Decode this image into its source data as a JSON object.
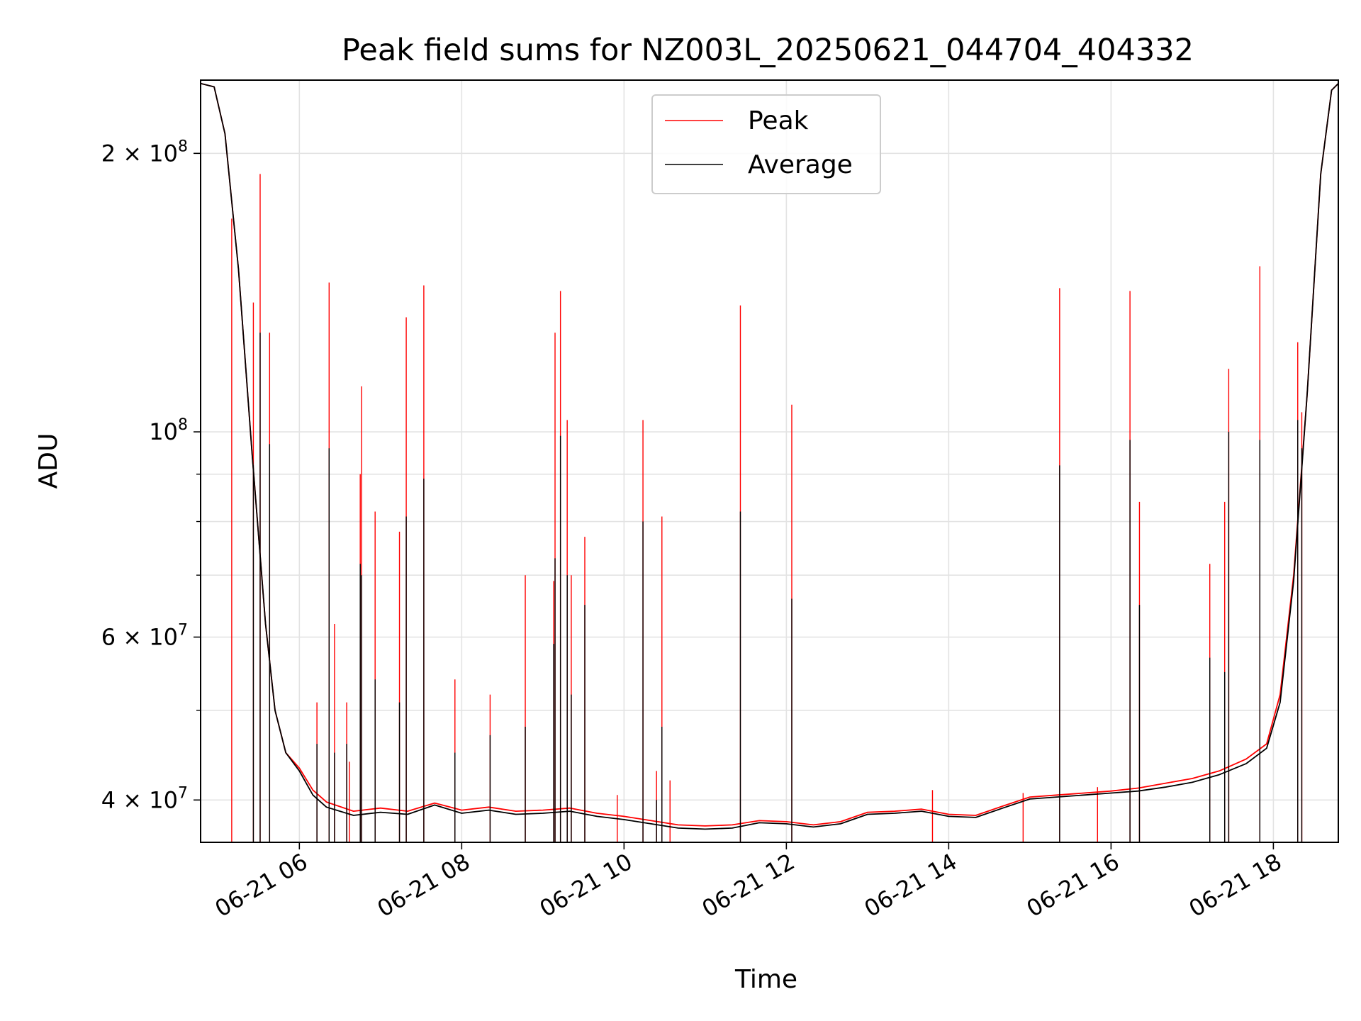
{
  "chart_data": {
    "type": "line",
    "title": "Peak field sums for NZ003L_20250621_044704_404332",
    "xlabel": "Time",
    "ylabel": "ADU",
    "yscale": "log",
    "ylim": [
      36000000,
      240000000
    ],
    "xlim": [
      "2025-06-21 04:47",
      "2025-06-21 18:48"
    ],
    "grid": true,
    "legend_position": "top-center",
    "x_ticks": [
      {
        "time": "2025-06-21 06:00",
        "label": "06-21 06"
      },
      {
        "time": "2025-06-21 08:00",
        "label": "06-21 08"
      },
      {
        "time": "2025-06-21 10:00",
        "label": "06-21 10"
      },
      {
        "time": "2025-06-21 12:00",
        "label": "06-21 12"
      },
      {
        "time": "2025-06-21 14:00",
        "label": "06-21 14"
      },
      {
        "time": "2025-06-21 16:00",
        "label": "06-21 16"
      },
      {
        "time": "2025-06-21 18:00",
        "label": "06-21 18"
      }
    ],
    "y_ticks_major": [
      {
        "value": 40000000,
        "mantissa": "4",
        "base": "10",
        "exp": "7"
      },
      {
        "value": 60000000,
        "mantissa": "6",
        "base": "10",
        "exp": "7"
      },
      {
        "value": 100000000,
        "mantissa": "",
        "base": "10",
        "exp": "8"
      },
      {
        "value": 200000000,
        "mantissa": "2",
        "base": "10",
        "exp": "8"
      }
    ],
    "y_ticks_minor": [
      50000000,
      70000000,
      80000000,
      90000000
    ],
    "series": [
      {
        "name": "Peak",
        "color": "#ff0000",
        "baseline": [
          [
            "2025-06-21 04:47",
            238000000
          ],
          [
            "2025-06-21 04:57",
            236000000
          ],
          [
            "2025-06-21 05:05",
            210000000
          ],
          [
            "2025-06-21 05:15",
            150000000
          ],
          [
            "2025-06-21 05:25",
            95000000
          ],
          [
            "2025-06-21 05:35",
            62000000
          ],
          [
            "2025-06-21 05:42",
            50000000
          ],
          [
            "2025-06-21 05:50",
            45000000
          ],
          [
            "2025-06-21 06:00",
            43300000
          ],
          [
            "2025-06-21 06:10",
            41000000
          ],
          [
            "2025-06-21 06:20",
            39800000
          ],
          [
            "2025-06-21 06:40",
            38900000
          ],
          [
            "2025-06-21 07:00",
            39200000
          ],
          [
            "2025-06-21 07:20",
            38900000
          ],
          [
            "2025-06-21 07:40",
            39700000
          ],
          [
            "2025-06-21 08:00",
            39000000
          ],
          [
            "2025-06-21 08:20",
            39300000
          ],
          [
            "2025-06-21 08:40",
            38900000
          ],
          [
            "2025-06-21 09:00",
            39000000
          ],
          [
            "2025-06-21 09:20",
            39200000
          ],
          [
            "2025-06-21 09:40",
            38700000
          ],
          [
            "2025-06-21 10:00",
            38400000
          ],
          [
            "2025-06-21 10:20",
            38000000
          ],
          [
            "2025-06-21 10:40",
            37600000
          ],
          [
            "2025-06-21 11:00",
            37500000
          ],
          [
            "2025-06-21 11:20",
            37600000
          ],
          [
            "2025-06-21 11:40",
            38000000
          ],
          [
            "2025-06-21 12:00",
            37900000
          ],
          [
            "2025-06-21 12:20",
            37600000
          ],
          [
            "2025-06-21 12:40",
            37900000
          ],
          [
            "2025-06-21 13:00",
            38800000
          ],
          [
            "2025-06-21 13:20",
            38900000
          ],
          [
            "2025-06-21 13:40",
            39100000
          ],
          [
            "2025-06-21 14:00",
            38600000
          ],
          [
            "2025-06-21 14:20",
            38500000
          ],
          [
            "2025-06-21 14:40",
            39400000
          ],
          [
            "2025-06-21 15:00",
            40300000
          ],
          [
            "2025-06-21 15:20",
            40500000
          ],
          [
            "2025-06-21 15:40",
            40700000
          ],
          [
            "2025-06-21 16:00",
            40900000
          ],
          [
            "2025-06-21 16:20",
            41200000
          ],
          [
            "2025-06-21 16:40",
            41700000
          ],
          [
            "2025-06-21 17:00",
            42200000
          ],
          [
            "2025-06-21 17:20",
            43000000
          ],
          [
            "2025-06-21 17:40",
            44300000
          ],
          [
            "2025-06-21 17:55",
            46000000
          ],
          [
            "2025-06-21 18:05",
            52000000
          ],
          [
            "2025-06-21 18:15",
            70000000
          ],
          [
            "2025-06-21 18:25",
            110000000
          ],
          [
            "2025-06-21 18:35",
            190000000
          ],
          [
            "2025-06-21 18:43",
            234000000
          ],
          [
            "2025-06-21 18:48",
            238000000
          ]
        ],
        "spikes": [
          [
            "2025-06-21 05:10",
            170000000
          ],
          [
            "2025-06-21 05:26",
            138000000
          ],
          [
            "2025-06-21 05:31",
            190000000
          ],
          [
            "2025-06-21 05:38",
            128000000
          ],
          [
            "2025-06-21 06:13",
            51000000
          ],
          [
            "2025-06-21 06:22",
            145000000
          ],
          [
            "2025-06-21 06:26",
            62000000
          ],
          [
            "2025-06-21 06:35",
            51000000
          ],
          [
            "2025-06-21 06:37",
            44000000
          ],
          [
            "2025-06-21 06:45",
            90000000
          ],
          [
            "2025-06-21 06:46",
            112000000
          ],
          [
            "2025-06-21 06:56",
            82000000
          ],
          [
            "2025-06-21 07:14",
            78000000
          ],
          [
            "2025-06-21 07:19",
            133000000
          ],
          [
            "2025-06-21 07:32",
            144000000
          ],
          [
            "2025-06-21 07:55",
            54000000
          ],
          [
            "2025-06-21 08:21",
            52000000
          ],
          [
            "2025-06-21 08:47",
            70000000
          ],
          [
            "2025-06-21 09:08",
            69000000
          ],
          [
            "2025-06-21 09:09",
            128000000
          ],
          [
            "2025-06-21 09:13",
            142000000
          ],
          [
            "2025-06-21 09:18",
            103000000
          ],
          [
            "2025-06-21 09:21",
            70000000
          ],
          [
            "2025-06-21 09:31",
            77000000
          ],
          [
            "2025-06-21 09:55",
            40500000
          ],
          [
            "2025-06-21 10:14",
            103000000
          ],
          [
            "2025-06-21 10:24",
            43000000
          ],
          [
            "2025-06-21 10:28",
            81000000
          ],
          [
            "2025-06-21 10:34",
            42000000
          ],
          [
            "2025-06-21 11:26",
            137000000
          ],
          [
            "2025-06-21 12:04",
            107000000
          ],
          [
            "2025-06-21 13:48",
            41000000
          ],
          [
            "2025-06-21 14:55",
            40700000
          ],
          [
            "2025-06-21 15:22",
            143000000
          ],
          [
            "2025-06-21 15:50",
            41300000
          ],
          [
            "2025-06-21 16:14",
            142000000
          ],
          [
            "2025-06-21 16:21",
            84000000
          ],
          [
            "2025-06-21 17:13",
            72000000
          ],
          [
            "2025-06-21 17:24",
            84000000
          ],
          [
            "2025-06-21 17:27",
            117000000
          ],
          [
            "2025-06-21 17:50",
            151000000
          ],
          [
            "2025-06-21 18:18",
            125000000
          ],
          [
            "2025-06-21 18:21",
            105000000
          ]
        ]
      },
      {
        "name": "Average",
        "color": "#000000",
        "baseline": [
          [
            "2025-06-21 04:47",
            238000000
          ],
          [
            "2025-06-21 04:57",
            236000000
          ],
          [
            "2025-06-21 05:05",
            210000000
          ],
          [
            "2025-06-21 05:15",
            150000000
          ],
          [
            "2025-06-21 05:25",
            95000000
          ],
          [
            "2025-06-21 05:35",
            62000000
          ],
          [
            "2025-06-21 05:42",
            50000000
          ],
          [
            "2025-06-21 05:50",
            45000000
          ],
          [
            "2025-06-21 06:00",
            43000000
          ],
          [
            "2025-06-21 06:10",
            40500000
          ],
          [
            "2025-06-21 06:20",
            39300000
          ],
          [
            "2025-06-21 06:40",
            38500000
          ],
          [
            "2025-06-21 07:00",
            38800000
          ],
          [
            "2025-06-21 07:20",
            38600000
          ],
          [
            "2025-06-21 07:40",
            39500000
          ],
          [
            "2025-06-21 08:00",
            38700000
          ],
          [
            "2025-06-21 08:20",
            39000000
          ],
          [
            "2025-06-21 08:40",
            38600000
          ],
          [
            "2025-06-21 09:00",
            38700000
          ],
          [
            "2025-06-21 09:20",
            38900000
          ],
          [
            "2025-06-21 09:40",
            38400000
          ],
          [
            "2025-06-21 10:00",
            38100000
          ],
          [
            "2025-06-21 10:20",
            37700000
          ],
          [
            "2025-06-21 10:40",
            37300000
          ],
          [
            "2025-06-21 11:00",
            37200000
          ],
          [
            "2025-06-21 11:20",
            37300000
          ],
          [
            "2025-06-21 11:40",
            37800000
          ],
          [
            "2025-06-21 12:00",
            37700000
          ],
          [
            "2025-06-21 12:20",
            37400000
          ],
          [
            "2025-06-21 12:40",
            37700000
          ],
          [
            "2025-06-21 13:00",
            38600000
          ],
          [
            "2025-06-21 13:20",
            38700000
          ],
          [
            "2025-06-21 13:40",
            38900000
          ],
          [
            "2025-06-21 14:00",
            38400000
          ],
          [
            "2025-06-21 14:20",
            38300000
          ],
          [
            "2025-06-21 14:40",
            39200000
          ],
          [
            "2025-06-21 15:00",
            40100000
          ],
          [
            "2025-06-21 15:20",
            40300000
          ],
          [
            "2025-06-21 15:40",
            40500000
          ],
          [
            "2025-06-21 16:00",
            40700000
          ],
          [
            "2025-06-21 16:20",
            40900000
          ],
          [
            "2025-06-21 16:40",
            41300000
          ],
          [
            "2025-06-21 17:00",
            41800000
          ],
          [
            "2025-06-21 17:20",
            42600000
          ],
          [
            "2025-06-21 17:40",
            43800000
          ],
          [
            "2025-06-21 17:55",
            45500000
          ],
          [
            "2025-06-21 18:05",
            51000000
          ],
          [
            "2025-06-21 18:15",
            69000000
          ],
          [
            "2025-06-21 18:25",
            110000000
          ],
          [
            "2025-06-21 18:35",
            190000000
          ],
          [
            "2025-06-21 18:43",
            234000000
          ],
          [
            "2025-06-21 18:48",
            238000000
          ]
        ],
        "spikes": [
          [
            "2025-06-21 05:26",
            92000000
          ],
          [
            "2025-06-21 05:31",
            128000000
          ],
          [
            "2025-06-21 05:38",
            97000000
          ],
          [
            "2025-06-21 06:13",
            46000000
          ],
          [
            "2025-06-21 06:22",
            96000000
          ],
          [
            "2025-06-21 06:26",
            45000000
          ],
          [
            "2025-06-21 06:35",
            46000000
          ],
          [
            "2025-06-21 06:45",
            72000000
          ],
          [
            "2025-06-21 06:46",
            70000000
          ],
          [
            "2025-06-21 06:56",
            54000000
          ],
          [
            "2025-06-21 07:14",
            51000000
          ],
          [
            "2025-06-21 07:19",
            81000000
          ],
          [
            "2025-06-21 07:32",
            89000000
          ],
          [
            "2025-06-21 07:55",
            45000000
          ],
          [
            "2025-06-21 08:21",
            47000000
          ],
          [
            "2025-06-21 08:47",
            48000000
          ],
          [
            "2025-06-21 09:08",
            59000000
          ],
          [
            "2025-06-21 09:09",
            73000000
          ],
          [
            "2025-06-21 09:13",
            99000000
          ],
          [
            "2025-06-21 09:18",
            70000000
          ],
          [
            "2025-06-21 09:21",
            52000000
          ],
          [
            "2025-06-21 09:31",
            65000000
          ],
          [
            "2025-06-21 10:14",
            80000000
          ],
          [
            "2025-06-21 10:24",
            40000000
          ],
          [
            "2025-06-21 10:28",
            48000000
          ],
          [
            "2025-06-21 11:26",
            82000000
          ],
          [
            "2025-06-21 12:04",
            66000000
          ],
          [
            "2025-06-21 15:22",
            92000000
          ],
          [
            "2025-06-21 16:14",
            98000000
          ],
          [
            "2025-06-21 16:21",
            65000000
          ],
          [
            "2025-06-21 17:13",
            57000000
          ],
          [
            "2025-06-21 17:24",
            55000000
          ],
          [
            "2025-06-21 17:27",
            100000000
          ],
          [
            "2025-06-21 17:50",
            98000000
          ],
          [
            "2025-06-21 18:18",
            103000000
          ],
          [
            "2025-06-21 18:21",
            96000000
          ]
        ]
      }
    ]
  }
}
